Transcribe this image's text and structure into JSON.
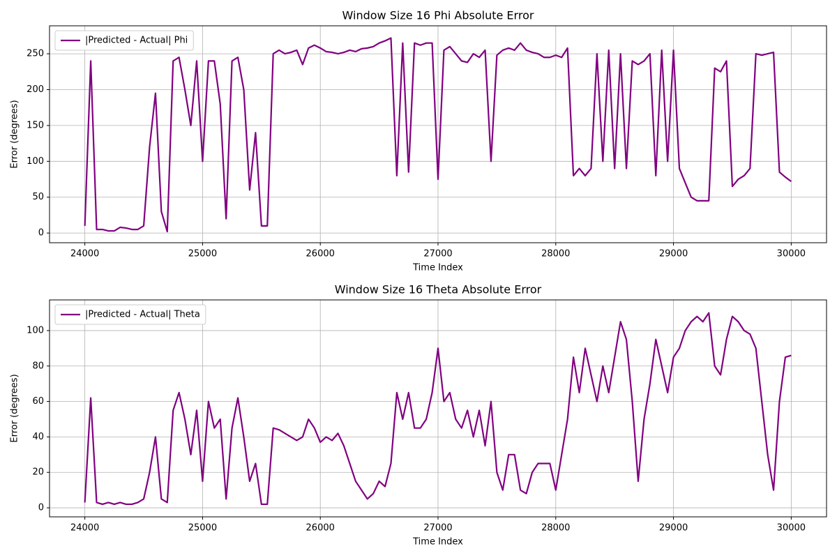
{
  "chart_data": [
    {
      "type": "line",
      "title": "Window Size 16 Phi Absolute Error",
      "x_label": "Time Index",
      "y_label": "Error (degrees)",
      "x": [
        24000,
        24050,
        24100,
        24150,
        24200,
        24250,
        24300,
        24350,
        24400,
        24450,
        24500,
        24550,
        24600,
        24650,
        24700,
        24750,
        24800,
        24850,
        24900,
        24950,
        25000,
        25050,
        25100,
        25150,
        25200,
        25250,
        25300,
        25350,
        25400,
        25450,
        25500,
        25550,
        25600,
        25650,
        25700,
        25750,
        25800,
        25850,
        25900,
        25950,
        26000,
        26050,
        26100,
        26150,
        26200,
        26250,
        26300,
        26350,
        26400,
        26450,
        26500,
        26550,
        26600,
        26650,
        26700,
        26750,
        26800,
        26850,
        26900,
        26950,
        27000,
        27050,
        27100,
        27150,
        27200,
        27250,
        27300,
        27350,
        27400,
        27450,
        27500,
        27550,
        27600,
        27650,
        27700,
        27750,
        27800,
        27850,
        27900,
        27950,
        28000,
        28050,
        28100,
        28150,
        28200,
        28250,
        28300,
        28350,
        28400,
        28450,
        28500,
        28550,
        28600,
        28650,
        28700,
        28750,
        28800,
        28850,
        28900,
        28950,
        29000,
        29050,
        29100,
        29150,
        29200,
        29250,
        29300,
        29350,
        29400,
        29450,
        29500,
        29550,
        29600,
        29650,
        29700,
        29750,
        29800,
        29850,
        29900,
        29950,
        30000
      ],
      "series": [
        {
          "name": "|Predicted - Actual| Phi",
          "color": "#800080",
          "values": [
            10,
            240,
            5,
            5,
            3,
            3,
            8,
            7,
            5,
            5,
            10,
            120,
            195,
            30,
            2,
            240,
            245,
            200,
            150,
            240,
            100,
            240,
            240,
            180,
            20,
            240,
            245,
            200,
            60,
            140,
            10,
            10,
            250,
            255,
            250,
            252,
            255,
            235,
            258,
            262,
            258,
            253,
            252,
            250,
            252,
            255,
            253,
            257,
            258,
            260,
            265,
            268,
            272,
            80,
            265,
            85,
            265,
            262,
            265,
            265,
            75,
            255,
            260,
            250,
            240,
            238,
            250,
            245,
            255,
            100,
            248,
            255,
            258,
            255,
            265,
            255,
            252,
            250,
            245,
            245,
            248,
            245,
            258,
            80,
            90,
            80,
            90,
            250,
            100,
            255,
            90,
            250,
            90,
            240,
            235,
            240,
            250,
            80,
            255,
            100,
            255,
            90,
            70,
            50,
            45,
            45,
            45,
            230,
            225,
            240,
            65,
            75,
            80,
            90,
            250,
            248,
            250,
            252,
            85,
            78,
            72
          ]
        }
      ],
      "xlim": [
        23700,
        30300
      ],
      "ylim": [
        -13.5,
        289
      ],
      "xticks": [
        24000,
        25000,
        26000,
        27000,
        28000,
        29000,
        30000
      ],
      "yticks": [
        0,
        50,
        100,
        150,
        200,
        250
      ],
      "grid": true,
      "legend": "upper left"
    },
    {
      "type": "line",
      "title": "Window Size 16 Theta Absolute Error",
      "x_label": "Time Index",
      "y_label": "Error (degrees)",
      "x": [
        24000,
        24050,
        24100,
        24150,
        24200,
        24250,
        24300,
        24350,
        24400,
        24450,
        24500,
        24550,
        24600,
        24650,
        24700,
        24750,
        24800,
        24850,
        24900,
        24950,
        25000,
        25050,
        25100,
        25150,
        25200,
        25250,
        25300,
        25350,
        25400,
        25450,
        25500,
        25550,
        25600,
        25650,
        25700,
        25750,
        25800,
        25850,
        25900,
        25950,
        26000,
        26050,
        26100,
        26150,
        26200,
        26250,
        26300,
        26350,
        26400,
        26450,
        26500,
        26550,
        26600,
        26650,
        26700,
        26750,
        26800,
        26850,
        26900,
        26950,
        27000,
        27050,
        27100,
        27150,
        27200,
        27250,
        27300,
        27350,
        27400,
        27450,
        27500,
        27550,
        27600,
        27650,
        27700,
        27750,
        27800,
        27850,
        27900,
        27950,
        28000,
        28050,
        28100,
        28150,
        28200,
        28250,
        28300,
        28350,
        28400,
        28450,
        28500,
        28550,
        28600,
        28650,
        28700,
        28750,
        28800,
        28850,
        28900,
        28950,
        29000,
        29050,
        29100,
        29150,
        29200,
        29250,
        29300,
        29350,
        29400,
        29450,
        29500,
        29550,
        29600,
        29650,
        29700,
        29750,
        29800,
        29850,
        29900,
        29950,
        30000
      ],
      "series": [
        {
          "name": "|Predicted - Actual| Theta",
          "color": "#800080",
          "values": [
            3,
            62,
            3,
            2,
            3,
            2,
            3,
            2,
            2,
            3,
            5,
            20,
            40,
            5,
            3,
            55,
            65,
            50,
            30,
            55,
            15,
            60,
            45,
            50,
            5,
            45,
            62,
            40,
            15,
            25,
            2,
            2,
            45,
            44,
            42,
            40,
            38,
            40,
            50,
            45,
            37,
            40,
            38,
            42,
            35,
            25,
            15,
            10,
            5,
            8,
            15,
            12,
            25,
            65,
            50,
            65,
            45,
            45,
            50,
            65,
            90,
            60,
            65,
            50,
            45,
            55,
            40,
            55,
            35,
            60,
            20,
            10,
            30,
            30,
            10,
            8,
            20,
            25,
            25,
            25,
            10,
            30,
            50,
            85,
            65,
            90,
            75,
            60,
            80,
            65,
            85,
            105,
            95,
            60,
            15,
            50,
            70,
            95,
            80,
            65,
            85,
            90,
            100,
            105,
            108,
            105,
            110,
            80,
            75,
            95,
            108,
            105,
            100,
            98,
            90,
            60,
            30,
            10,
            60,
            85,
            86
          ]
        }
      ],
      "xlim": [
        23700,
        30300
      ],
      "ylim": [
        -5.1,
        117.3
      ],
      "xticks": [
        24000,
        25000,
        26000,
        27000,
        28000,
        29000,
        30000
      ],
      "yticks": [
        0,
        20,
        40,
        60,
        80,
        100
      ],
      "grid": true,
      "legend": "upper left"
    }
  ]
}
